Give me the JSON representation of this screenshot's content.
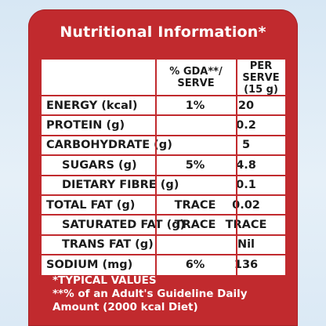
{
  "title": "Nutritional Information*",
  "header": {
    "gda_line1": "% GDA**/",
    "gda_line2": "SERVE",
    "serve_line1": "PER SERVE",
    "serve_line2": "(15 g)"
  },
  "rows": [
    {
      "name": "ENERGY (kcal)",
      "gda": "1%",
      "serve": "20",
      "indent": false
    },
    {
      "name": "PROTEIN (g)",
      "gda": "",
      "serve": "0.2",
      "indent": false
    },
    {
      "name": "CARBOHYDRATE (g)",
      "gda": "",
      "serve": "5",
      "indent": false
    },
    {
      "name": "SUGARS (g)",
      "gda": "5%",
      "serve": "4.8",
      "indent": true
    },
    {
      "name": "DIETARY FIBRE (g)",
      "gda": "",
      "serve": "0.1",
      "indent": true
    },
    {
      "name": "TOTAL FAT (g)",
      "gda": "TRACE",
      "serve": "0.02",
      "indent": false
    },
    {
      "name": "SATURATED FAT (g)",
      "gda": "TRACE",
      "serve": "TRACE",
      "indent": true
    },
    {
      "name": "TRANS FAT (g)",
      "gda": "",
      "serve": "Nil",
      "indent": true
    },
    {
      "name": "SODIUM (mg)",
      "gda": "6%",
      "serve": "136",
      "indent": false
    }
  ],
  "footnotes": [
    "*TYPICAL VALUES",
    "**% of an Adult's Guideline Daily",
    "Amount (2000 kcal Diet)"
  ],
  "colors": {
    "panel": "#c12a2e",
    "cell": "#ffffff",
    "background": "#dce9f5"
  }
}
